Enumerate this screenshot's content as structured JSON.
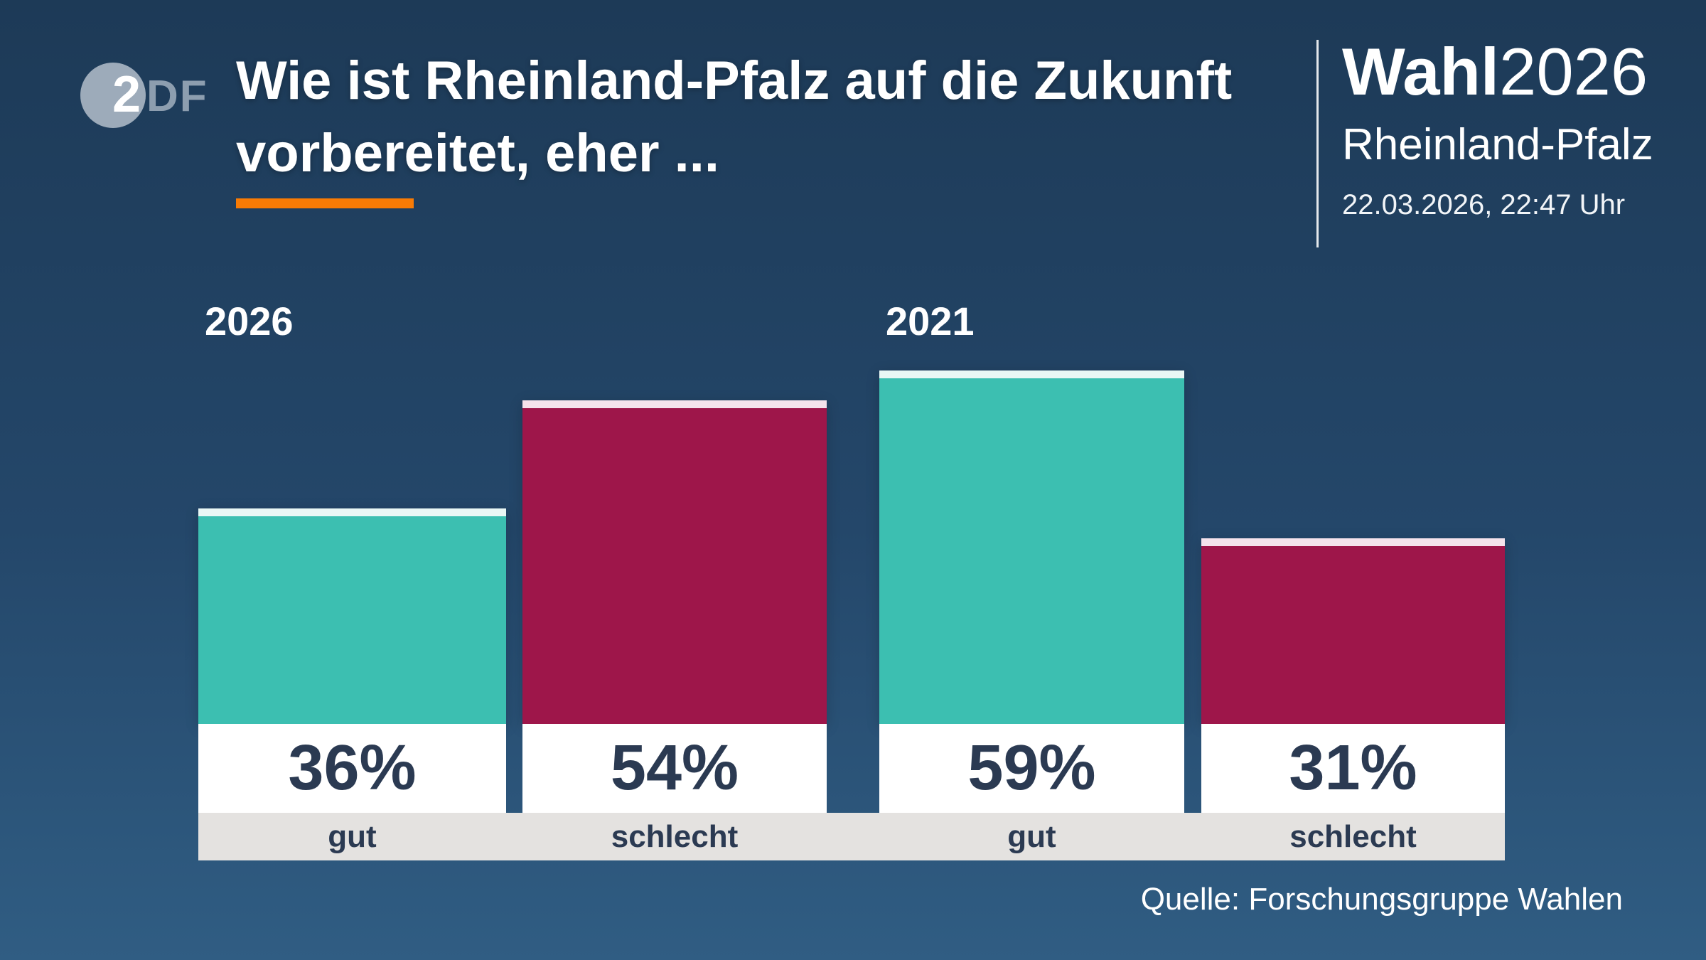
{
  "header": {
    "logo": {
      "part_2": "2",
      "part_df": "DF"
    },
    "title_line1": "Wie ist Rheinland-Pfalz auf die Zukunft",
    "title_line2": "vorbereitet, eher ...",
    "brand": {
      "name_bold": "Wahl",
      "name_year": "2026",
      "region": "Rheinland-Pfalz",
      "datetime": "22.03.2026, 22:47 Uhr"
    }
  },
  "chart_data": {
    "type": "bar",
    "title": "Wie ist Rheinland-Pfalz auf die Zukunft vorbereitet, eher ...",
    "unit": "%",
    "ylim": [
      0,
      100
    ],
    "grid": false,
    "legend": "none",
    "groups": [
      {
        "year": "2026"
      },
      {
        "year": "2021"
      }
    ],
    "categories": [
      "gut",
      "schlecht",
      "gut",
      "schlecht"
    ],
    "bars": [
      {
        "group": "2026",
        "label": "gut",
        "value": 36,
        "value_label": "36%",
        "color": "#3cbfb1",
        "cap_color": "#e9f7f5"
      },
      {
        "group": "2026",
        "label": "schlecht",
        "value": 54,
        "value_label": "54%",
        "color": "#9e164a",
        "cap_color": "#f5e3ec"
      },
      {
        "group": "2021",
        "label": "gut",
        "value": 59,
        "value_label": "59%",
        "color": "#3cbfb1",
        "cap_color": "#e9f7f5"
      },
      {
        "group": "2021",
        "label": "schlecht",
        "value": 31,
        "value_label": "31%",
        "color": "#9e164a",
        "cap_color": "#f5e3ec"
      }
    ]
  },
  "source": {
    "text": "Quelle: Forschungsgruppe Wahlen"
  },
  "colors": {
    "background_top": "#1d3a57",
    "background_bottom": "#305d83",
    "accent_orange": "#f87b05",
    "bar_teal": "#3cbfb1",
    "bar_red": "#9e164a",
    "value_box_white": "#ffffff",
    "axis_strip_grey": "#e4e2e0",
    "value_text_navy": "#2b3a52",
    "text_white": "#ffffff"
  }
}
